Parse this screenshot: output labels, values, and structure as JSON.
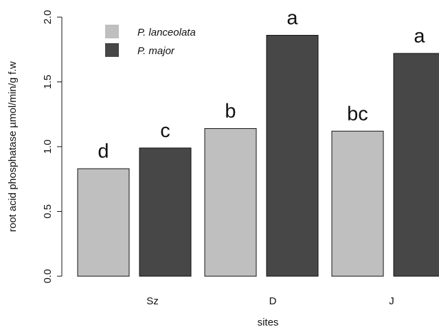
{
  "chart_data": {
    "type": "bar",
    "title": "",
    "xlabel": "sites",
    "ylabel": "root acid phosphatase µmol/min/g f.w",
    "categories": [
      "Sz",
      "D",
      "J"
    ],
    "series": [
      {
        "name": "P. lanceolata",
        "color": "#bfbfbf",
        "values": [
          0.83,
          1.14,
          1.12
        ],
        "labels": [
          "d",
          "b",
          "bc"
        ]
      },
      {
        "name": "P. major",
        "color": "#474747",
        "values": [
          0.99,
          1.86,
          1.72
        ],
        "labels": [
          "c",
          "a",
          "a"
        ]
      }
    ],
    "ylim": [
      0,
      2.0
    ],
    "yticks": [
      "0.0",
      "0.5",
      "1.0",
      "1.5",
      "2.0"
    ],
    "grid": false,
    "legend_position": "top-left"
  }
}
